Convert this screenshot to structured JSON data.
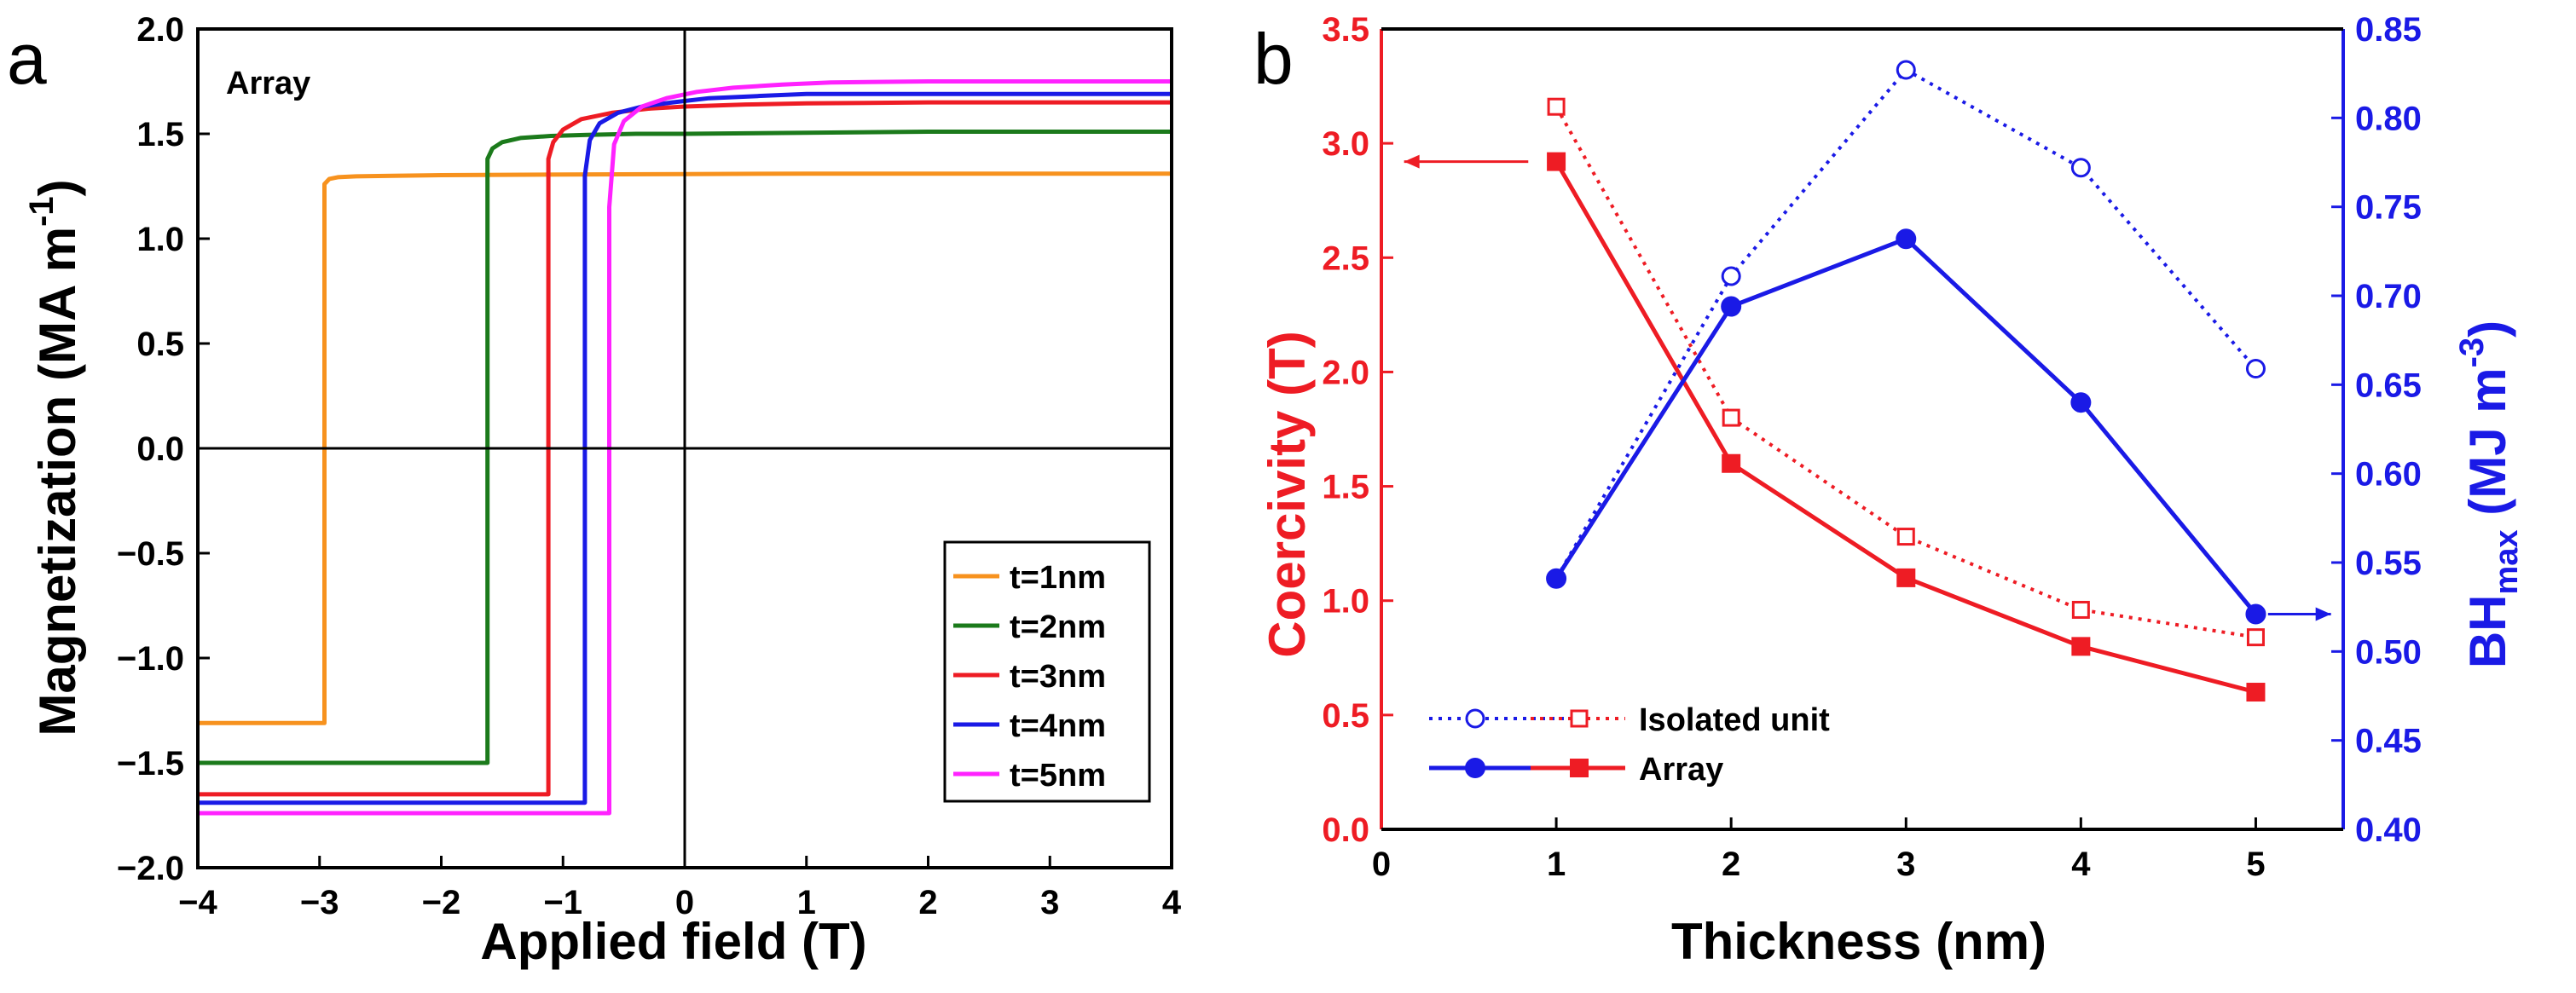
{
  "chart_data": [
    {
      "panel": "a",
      "type": "line",
      "title": "Array",
      "xlabel": "Applied field (T)",
      "ylabel_main": "Magnetization (MA m",
      "ylabel_sup": "-1",
      "ylabel_close": ")",
      "xlim": [
        -4,
        4
      ],
      "ylim": [
        -2.0,
        2.0
      ],
      "xticks": [
        -4,
        -3,
        -2,
        -1,
        0,
        1,
        2,
        3,
        4
      ],
      "xtick_labels": [
        "−4",
        "−3",
        "−2",
        "−1",
        "0",
        "1",
        "2",
        "3",
        "4"
      ],
      "yticks": [
        -2.0,
        -1.5,
        -1.0,
        -0.5,
        0.0,
        0.5,
        1.0,
        1.5,
        2.0
      ],
      "ytick_labels": [
        "−2.0",
        "−1.5",
        "−1.0",
        "−0.5",
        "0.0",
        "0.5",
        "1.0",
        "1.5",
        "2.0"
      ],
      "series": [
        {
          "name": "t=1nm",
          "color": "#f7921e",
          "x": [
            -4,
            -2.96,
            -2.96,
            -2.92,
            -2.85,
            -2.7,
            -2.4,
            -2.0,
            -1.0,
            0,
            1,
            2,
            4
          ],
          "y": [
            -1.31,
            -1.31,
            1.26,
            1.285,
            1.293,
            1.297,
            1.3,
            1.303,
            1.306,
            1.308,
            1.31,
            1.31,
            1.31
          ]
        },
        {
          "name": "t=2nm",
          "color": "#1b7a1b",
          "x": [
            -4,
            -1.62,
            -1.62,
            -1.58,
            -1.5,
            -1.35,
            -1.1,
            -0.8,
            -0.4,
            0,
            1,
            2,
            4
          ],
          "y": [
            -1.5,
            -1.5,
            1.38,
            1.43,
            1.46,
            1.48,
            1.49,
            1.495,
            1.5,
            1.5,
            1.505,
            1.51,
            1.51
          ]
        },
        {
          "name": "t=3nm",
          "color": "#ee1c24",
          "x": [
            -4,
            -1.12,
            -1.12,
            -1.08,
            -1.0,
            -0.85,
            -0.6,
            -0.3,
            0,
            0.5,
            1,
            2,
            4
          ],
          "y": [
            -1.65,
            -1.65,
            1.38,
            1.46,
            1.52,
            1.57,
            1.6,
            1.62,
            1.63,
            1.64,
            1.645,
            1.65,
            1.65
          ]
        },
        {
          "name": "t=4nm",
          "color": "#1a1ae6",
          "x": [
            -4,
            -0.82,
            -0.82,
            -0.78,
            -0.7,
            -0.55,
            -0.35,
            -0.1,
            0.2,
            0.6,
            1,
            2,
            4
          ],
          "y": [
            -1.69,
            -1.69,
            1.3,
            1.47,
            1.55,
            1.6,
            1.63,
            1.65,
            1.67,
            1.68,
            1.69,
            1.69,
            1.69
          ]
        },
        {
          "name": "t=5nm",
          "color": "#ff22ff",
          "x": [
            -4,
            -0.62,
            -0.62,
            -0.58,
            -0.5,
            -0.35,
            -0.15,
            0.1,
            0.4,
            0.8,
            1.2,
            2,
            4
          ],
          "y": [
            -1.74,
            -1.74,
            1.15,
            1.45,
            1.56,
            1.63,
            1.67,
            1.7,
            1.72,
            1.735,
            1.745,
            1.75,
            1.75
          ]
        }
      ],
      "legend_position": "bottom-right"
    },
    {
      "panel": "b",
      "type": "line",
      "xlabel": "Thickness (nm)",
      "ylabel_left": "Coercivity (T)",
      "ylabel_right_main": "BH",
      "ylabel_right_sub": "max",
      "ylabel_right_unit": " (MJ m",
      "ylabel_right_sup": "-3",
      "ylabel_right_close": ")",
      "xlim": [
        0,
        5.5
      ],
      "ylim_left": [
        0,
        3.5
      ],
      "ylim_right": [
        0.4,
        0.85
      ],
      "xticks": [
        0,
        1,
        2,
        3,
        4,
        5
      ],
      "xtick_labels": [
        "0",
        "1",
        "2",
        "3",
        "4",
        "5"
      ],
      "yticks_left": [
        0,
        0.5,
        1.0,
        1.5,
        2.0,
        2.5,
        3.0,
        3.5
      ],
      "ytick_labels_left": [
        "0.0",
        "0.5",
        "1.0",
        "1.5",
        "2.0",
        "2.5",
        "3.0",
        "3.5"
      ],
      "yticks_right": [
        0.4,
        0.45,
        0.5,
        0.55,
        0.6,
        0.65,
        0.7,
        0.75,
        0.8,
        0.85
      ],
      "ytick_labels_right": [
        "0.40",
        "0.45",
        "0.50",
        "0.55",
        "0.60",
        "0.65",
        "0.70",
        "0.75",
        "0.80",
        "0.85"
      ],
      "x": [
        1,
        2,
        3,
        4,
        5
      ],
      "series": [
        {
          "name": "Coercivity, Isolated unit",
          "axis": "left",
          "color": "#ee1c24",
          "style": "dotted",
          "marker": "open-square",
          "values": [
            3.16,
            1.8,
            1.28,
            0.96,
            0.84
          ]
        },
        {
          "name": "Coercivity, Array",
          "axis": "left",
          "color": "#ee1c24",
          "style": "solid",
          "marker": "filled-square",
          "values": [
            2.92,
            1.6,
            1.1,
            0.8,
            0.6
          ]
        },
        {
          "name": "BHmax, Isolated unit",
          "axis": "right",
          "color": "#1a1ae6",
          "style": "dotted",
          "marker": "open-circle",
          "values": [
            0.541,
            0.711,
            0.827,
            0.772,
            0.659
          ]
        },
        {
          "name": "BHmax, Array",
          "axis": "right",
          "color": "#1a1ae6",
          "style": "solid",
          "marker": "filled-circle",
          "values": [
            0.541,
            0.694,
            0.732,
            0.64,
            0.521
          ]
        }
      ],
      "legend": [
        "Isolated unit",
        "Array"
      ],
      "legend_position": "bottom-left"
    }
  ]
}
